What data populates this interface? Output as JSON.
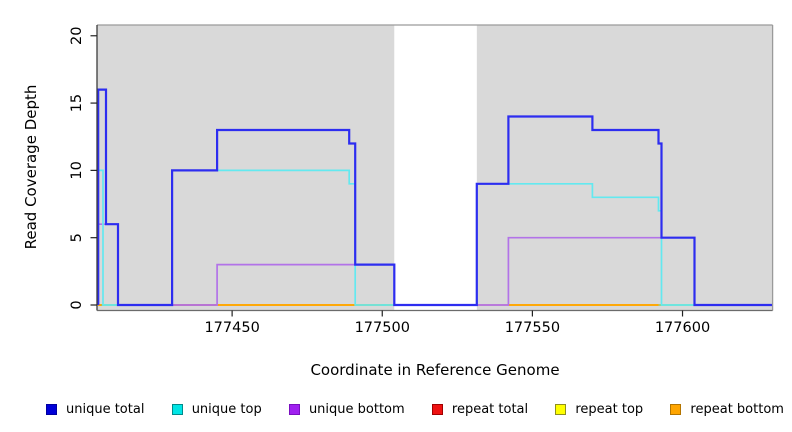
{
  "figure": {
    "xlabel": "Coordinate in Reference Genome",
    "ylabel": "Read Coverage Depth"
  },
  "chart_data": {
    "type": "line",
    "step": true,
    "title": "",
    "xlabel": "Coordinate in Reference Genome",
    "ylabel": "Read Coverage Depth",
    "xlim": [
      177405,
      177630
    ],
    "ylim": [
      0,
      20.8
    ],
    "x_ticks": [
      177450,
      177500,
      177550,
      177600
    ],
    "y_ticks": [
      0,
      5,
      10,
      15,
      20
    ],
    "grid": false,
    "legend_position": "bottom",
    "panel_bg": "#d9d9d9",
    "panel_border_top": "#9a9a9a",
    "panel_border_right": "#9a9a9a",
    "panel_border_left": "#3c3c3c",
    "panel_border_bottom": "#6b6b6b",
    "bg_regions": [
      [
        177405,
        177504
      ],
      [
        177531.5,
        177630
      ]
    ],
    "white_gap": [
      177504,
      177531.5
    ],
    "series": [
      {
        "name": "unique total",
        "color": "#2d2df0",
        "width": 2.2,
        "points": [
          [
            177405.4,
            0
          ],
          [
            177405.4,
            16
          ],
          [
            177408,
            16
          ],
          [
            177408,
            6
          ],
          [
            177412,
            6
          ],
          [
            177412,
            0
          ],
          [
            177430,
            0
          ],
          [
            177430,
            10
          ],
          [
            177445,
            10
          ],
          [
            177445,
            13
          ],
          [
            177489,
            13
          ],
          [
            177489,
            12
          ],
          [
            177491,
            12
          ],
          [
            177491,
            3
          ],
          [
            177504,
            3
          ],
          [
            177504,
            0
          ],
          [
            177531.5,
            0
          ],
          [
            177531.5,
            9
          ],
          [
            177542,
            9
          ],
          [
            177542,
            14
          ],
          [
            177570,
            14
          ],
          [
            177570,
            13
          ],
          [
            177592,
            13
          ],
          [
            177592,
            12
          ],
          [
            177593,
            12
          ],
          [
            177593,
            5
          ],
          [
            177604,
            5
          ],
          [
            177604,
            0
          ],
          [
            177630,
            0
          ]
        ]
      },
      {
        "name": "unique top",
        "color": "#63e9f0",
        "width": 1.7,
        "points": [
          [
            177405.4,
            10
          ],
          [
            177407,
            10
          ],
          [
            177407,
            0
          ],
          [
            177430,
            0
          ],
          [
            177430,
            10
          ],
          [
            177489,
            10
          ],
          [
            177489,
            9
          ],
          [
            177491,
            9
          ],
          [
            177491,
            0
          ],
          [
            177531.5,
            0
          ],
          [
            177531.5,
            9
          ],
          [
            177570,
            9
          ],
          [
            177570,
            8
          ],
          [
            177592,
            8
          ],
          [
            177592,
            7
          ],
          [
            177593,
            7
          ],
          [
            177593,
            0
          ],
          [
            177630,
            0
          ]
        ]
      },
      {
        "name": "unique bottom",
        "color": "#b273e8",
        "width": 1.7,
        "points": [
          [
            177405.4,
            6
          ],
          [
            177412,
            6
          ],
          [
            177412,
            0
          ],
          [
            177445,
            0
          ],
          [
            177445,
            3
          ],
          [
            177504,
            3
          ],
          [
            177504,
            0
          ],
          [
            177542,
            0
          ],
          [
            177542,
            5
          ],
          [
            177604,
            5
          ],
          [
            177604,
            0
          ],
          [
            177630,
            0
          ]
        ]
      },
      {
        "name": "repeat total",
        "color": "#e81c1c",
        "width": 1.5,
        "points": [
          [
            177405.4,
            0
          ],
          [
            177630,
            0
          ]
        ]
      },
      {
        "name": "repeat top",
        "color": "#ffff00",
        "width": 1.5,
        "points": [
          [
            177405.4,
            0
          ],
          [
            177630,
            0
          ]
        ]
      },
      {
        "name": "repeat bottom",
        "color": "#ffa500",
        "width": 1.5,
        "points": [
          [
            177405.4,
            0
          ],
          [
            177593,
            0
          ]
        ]
      }
    ],
    "baseline_overlay_segments": [
      {
        "from": 177405.4,
        "to": 177406.5,
        "color": "#ffa500"
      },
      {
        "from": 177406.5,
        "to": 177412,
        "color": "#7fd77f"
      },
      {
        "from": 177412,
        "to": 177430,
        "color": "#ffa500"
      },
      {
        "from": 177430,
        "to": 177444.6,
        "color": "#c64069"
      },
      {
        "from": 177444.6,
        "to": 177499.8,
        "color": "#ffa500"
      },
      {
        "from": 177499.8,
        "to": 177501.5,
        "color": "#7fd77f"
      },
      {
        "from": 177501.5,
        "to": 177531.5,
        "color": "#ffa500"
      },
      {
        "from": 177531.5,
        "to": 177542,
        "color": "#d9aee3"
      },
      {
        "from": 177542,
        "to": 177592,
        "color": "#ffa500"
      },
      {
        "from": 177592,
        "to": 177604,
        "color": "#8fd48f"
      }
    ]
  },
  "legend": {
    "items": [
      {
        "label": "unique total",
        "fill": "#0000d8",
        "border": "#0000a0"
      },
      {
        "label": "unique top",
        "fill": "#00e5e5",
        "border": "#008b8b"
      },
      {
        "label": "unique bottom",
        "fill": "#a020f0",
        "border": "#7a0fc0"
      },
      {
        "label": "repeat total",
        "fill": "#ee1111",
        "border": "#a00000"
      },
      {
        "label": "repeat top",
        "fill": "#ffff00",
        "border": "#8f8f20"
      },
      {
        "label": "repeat bottom",
        "fill": "#ffa500",
        "border": "#b37400"
      }
    ]
  }
}
